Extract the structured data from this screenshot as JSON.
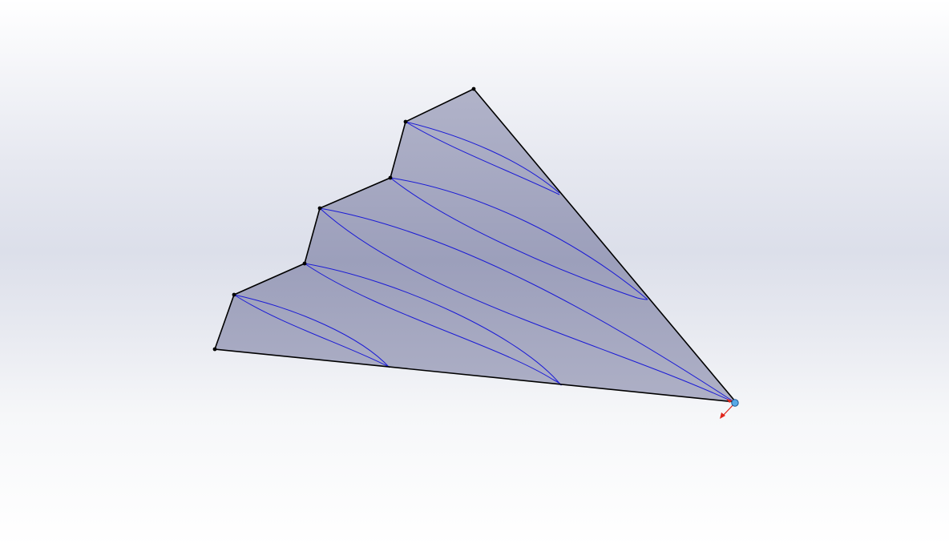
{
  "viewport": {
    "background_top": "#ffffff",
    "background_mid": "#dcdfea",
    "background_bottom": "#ffffff"
  },
  "model": {
    "face_color": "#a2a5c0",
    "edge_color": "#000000",
    "curve_color": "#1a1ad6",
    "vertex_color": "#000000"
  },
  "origin_marker": {
    "icon": "origin-triad-icon",
    "point_color": "#58a9e6",
    "axis_color": "#e0241b"
  }
}
